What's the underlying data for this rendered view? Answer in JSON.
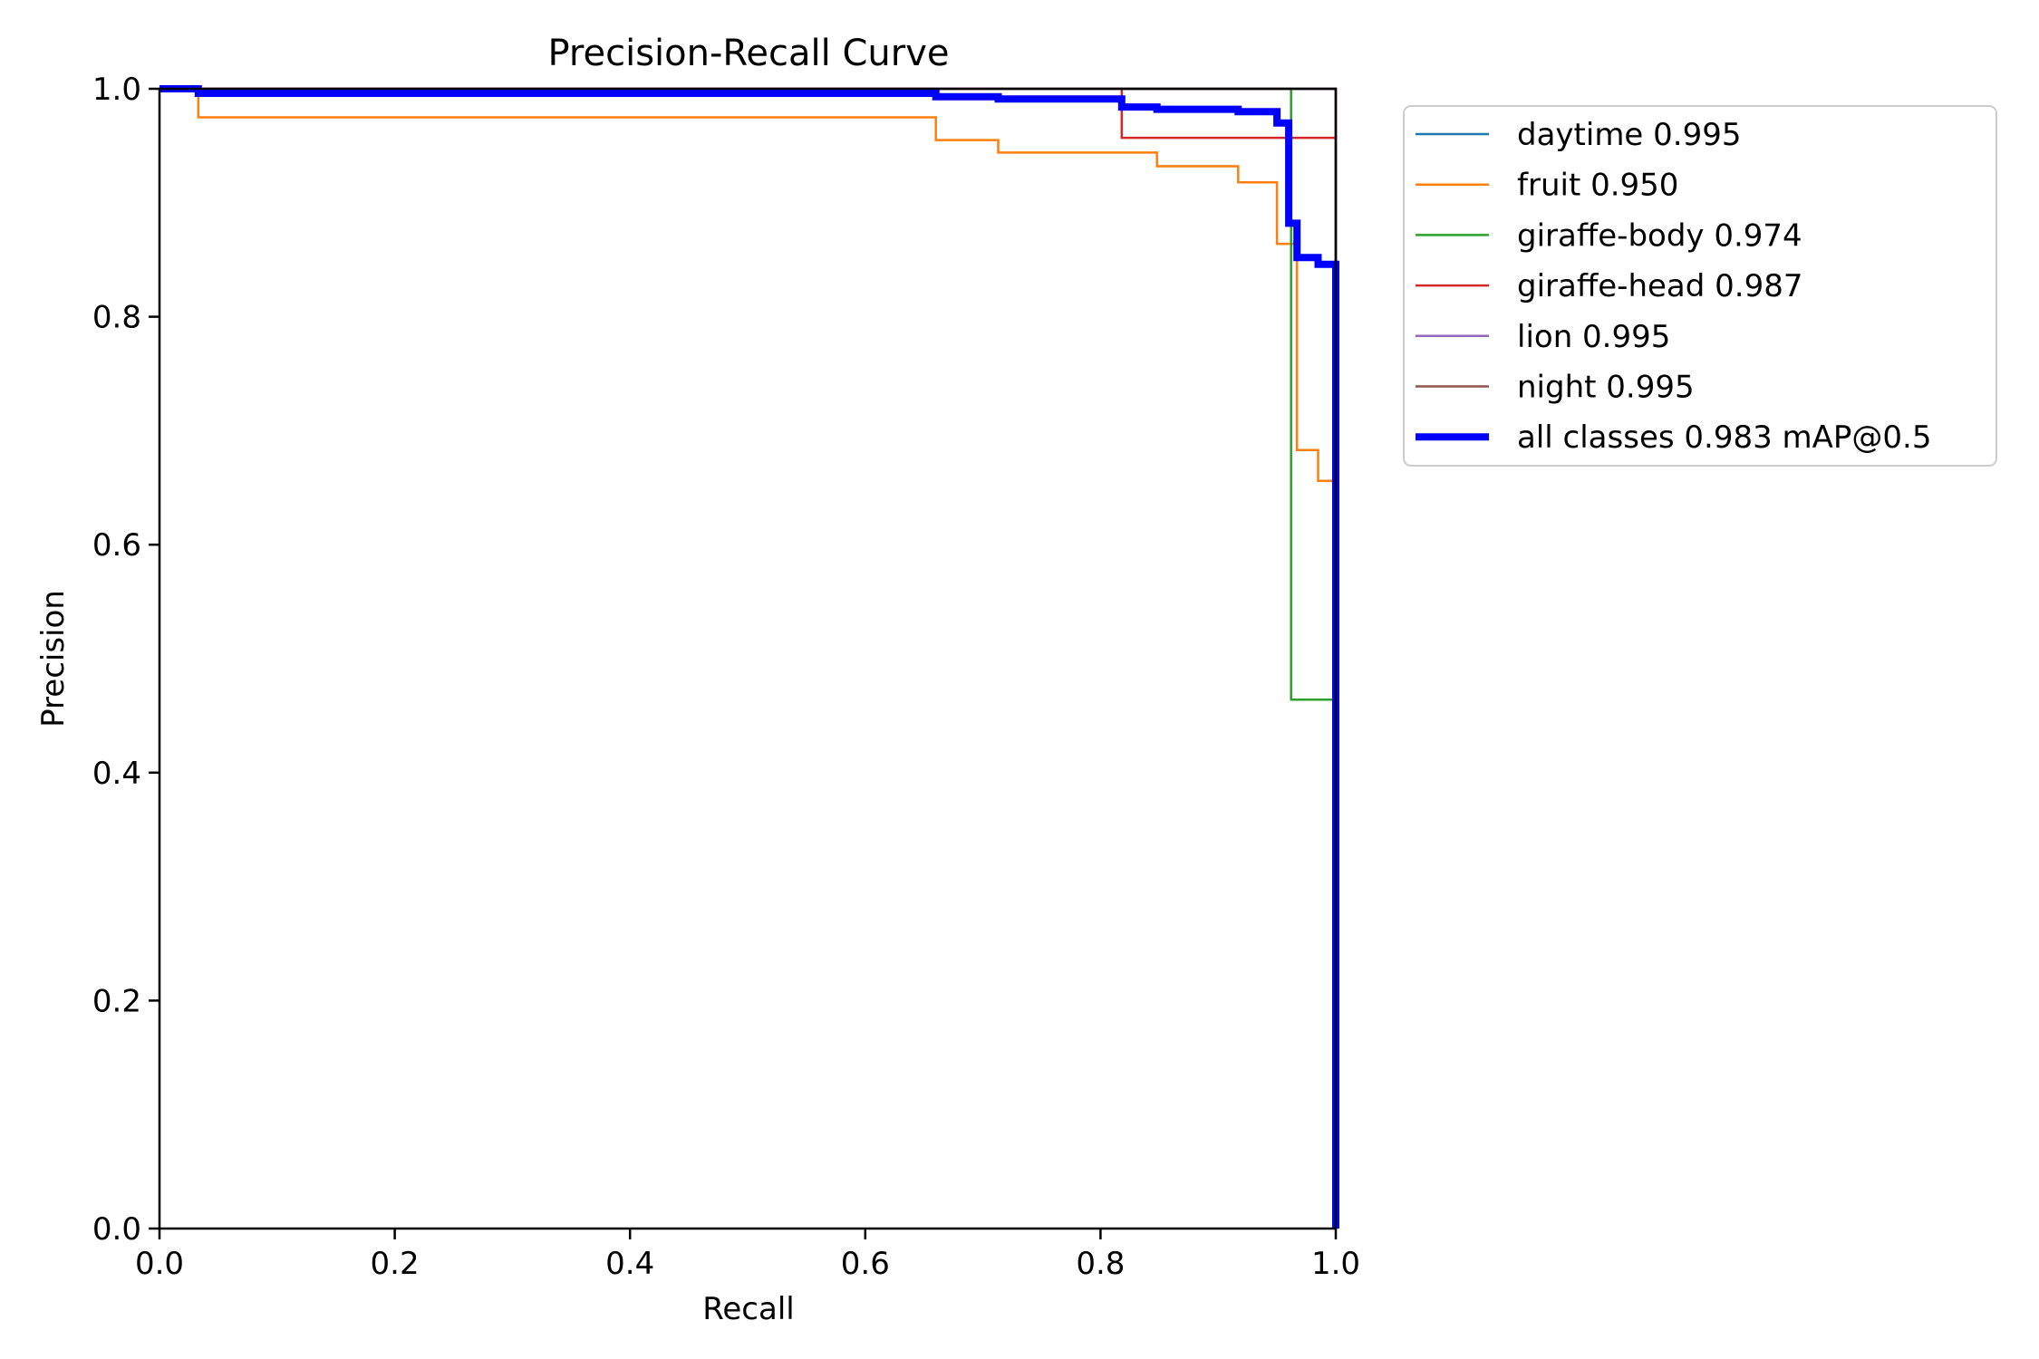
{
  "chart_data": {
    "type": "line",
    "title": "Precision-Recall Curve",
    "xlabel": "Recall",
    "ylabel": "Precision",
    "xlim": [
      0.0,
      1.0
    ],
    "ylim": [
      0.0,
      1.0
    ],
    "xticks": [
      "0.0",
      "0.2",
      "0.4",
      "0.6",
      "0.8",
      "1.0"
    ],
    "yticks": [
      "0.0",
      "0.2",
      "0.4",
      "0.6",
      "0.8",
      "1.0"
    ],
    "grid": false,
    "legend_position": "outside-upper-right",
    "series": [
      {
        "name": "daytime 0.995",
        "color": "#1f77b4",
        "points": [
          [
            0,
            1
          ],
          [
            1.0,
            1
          ],
          [
            1.0,
            0
          ]
        ]
      },
      {
        "name": "fruit 0.950",
        "color": "#ff7f0e",
        "points": [
          [
            0,
            1
          ],
          [
            0.033,
            1
          ],
          [
            0.033,
            0.975
          ],
          [
            0.66,
            0.975
          ],
          [
            0.66,
            0.955
          ],
          [
            0.713,
            0.955
          ],
          [
            0.713,
            0.944
          ],
          [
            0.848,
            0.944
          ],
          [
            0.848,
            0.932
          ],
          [
            0.917,
            0.932
          ],
          [
            0.917,
            0.918
          ],
          [
            0.95,
            0.918
          ],
          [
            0.95,
            0.864
          ],
          [
            0.967,
            0.864
          ],
          [
            0.967,
            0.683
          ],
          [
            0.985,
            0.683
          ],
          [
            0.985,
            0.656
          ],
          [
            1.0,
            0.656
          ],
          [
            1.0,
            0
          ]
        ]
      },
      {
        "name": "giraffe-body 0.974",
        "color": "#2ca02c",
        "points": [
          [
            0,
            1
          ],
          [
            0.962,
            1
          ],
          [
            0.962,
            0.464
          ],
          [
            1.0,
            0.464
          ],
          [
            1.0,
            0
          ]
        ]
      },
      {
        "name": "giraffe-head 0.987",
        "color": "#d62728",
        "points": [
          [
            0,
            1
          ],
          [
            0.818,
            1
          ],
          [
            0.818,
            0.957
          ],
          [
            1.0,
            0.957
          ],
          [
            1.0,
            0
          ]
        ]
      },
      {
        "name": "lion 0.995",
        "color": "#9467bd",
        "points": [
          [
            0,
            1
          ],
          [
            1.0,
            1
          ],
          [
            1.0,
            0
          ]
        ]
      },
      {
        "name": "night 0.995",
        "color": "#8c564b",
        "points": [
          [
            0,
            1
          ],
          [
            1.0,
            1
          ],
          [
            1.0,
            0
          ]
        ]
      },
      {
        "name": "all classes 0.983 mAP@0.5",
        "color": "#0000ff",
        "bold": true,
        "points": [
          [
            0,
            1
          ],
          [
            0.033,
            1
          ],
          [
            0.033,
            0.996
          ],
          [
            0.66,
            0.996
          ],
          [
            0.66,
            0.993
          ],
          [
            0.713,
            0.993
          ],
          [
            0.713,
            0.991
          ],
          [
            0.818,
            0.991
          ],
          [
            0.818,
            0.984
          ],
          [
            0.848,
            0.984
          ],
          [
            0.848,
            0.982
          ],
          [
            0.917,
            0.982
          ],
          [
            0.917,
            0.98
          ],
          [
            0.95,
            0.98
          ],
          [
            0.95,
            0.97
          ],
          [
            0.96,
            0.97
          ],
          [
            0.96,
            0.882
          ],
          [
            0.967,
            0.882
          ],
          [
            0.967,
            0.852
          ],
          [
            0.985,
            0.852
          ],
          [
            0.985,
            0.846
          ],
          [
            1.0,
            0.846
          ],
          [
            1.0,
            0
          ]
        ]
      }
    ]
  }
}
